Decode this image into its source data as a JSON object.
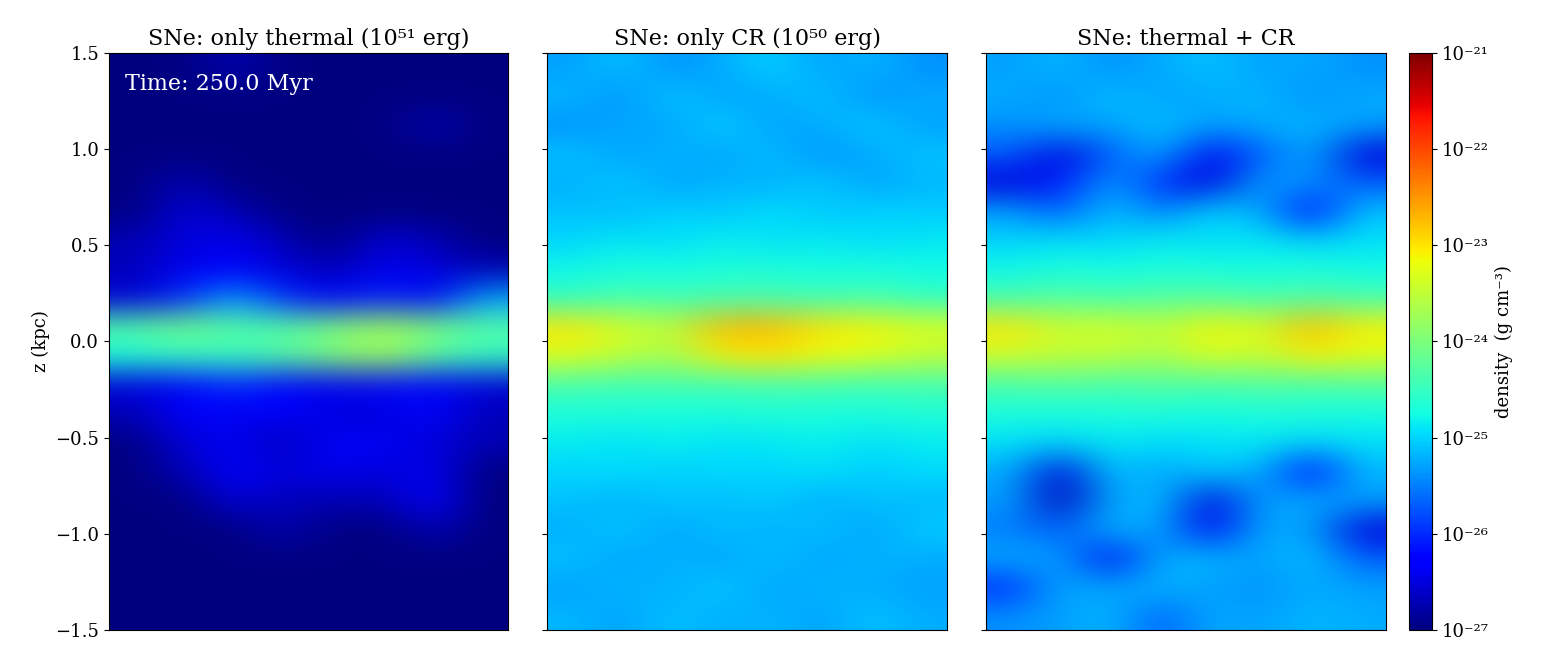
{
  "chart_data": [
    {
      "type": "heatmap",
      "title": "SNe: only thermal (10⁵¹ erg)",
      "annotation": "Time: 250.0 Myr",
      "y_label": "z (kpc)",
      "tick_labels": "y",
      "ylim": [
        -1.5,
        1.5
      ],
      "yticks": [
        {
          "value": -1.5,
          "label": "−1.5"
        },
        {
          "value": -1.0,
          "label": "−1.0"
        },
        {
          "value": -0.5,
          "label": "−0.5"
        },
        {
          "value": 0.0,
          "label": "0.0"
        },
        {
          "value": 0.5,
          "label": "0.5"
        },
        {
          "value": 1.0,
          "label": "1.0"
        },
        {
          "value": 1.5,
          "label": "1.5"
        }
      ],
      "cells": [
        [
          1e-27,
          1e-27,
          2e-27,
          1e-27,
          1e-27,
          1e-27,
          1e-27,
          1e-27
        ],
        [
          1e-27,
          1e-27,
          1e-27,
          1e-27,
          1e-27,
          1e-27,
          1e-27,
          1e-27
        ],
        [
          1e-27,
          1e-27,
          1e-27,
          1e-27,
          1e-27,
          1e-27,
          2e-27,
          1e-27
        ],
        [
          1e-27,
          1e-27,
          1e-27,
          1e-27,
          1e-27,
          1e-27,
          1e-27,
          1e-27
        ],
        [
          1e-27,
          2e-27,
          1e-27,
          1e-27,
          1e-27,
          1e-27,
          1e-27,
          1e-27
        ],
        [
          1e-27,
          3e-27,
          2e-27,
          1e-27,
          1e-27,
          1e-27,
          1e-27,
          1e-27
        ],
        [
          2e-27,
          3e-27,
          4e-27,
          2e-27,
          1e-27,
          3e-27,
          2e-27,
          1e-27
        ],
        [
          2e-27,
          4e-27,
          5e-27,
          3e-27,
          2e-27,
          4e-27,
          3e-27,
          2e-27
        ],
        [
          3e-27,
          1e-26,
          5e-26,
          1e-26,
          5e-27,
          1e-26,
          5e-27,
          5e-26
        ],
        [
          5e-25,
          1e-24,
          5e-25,
          5e-25,
          1e-24,
          2e-24,
          1e-24,
          5e-25
        ],
        [
          2e-25,
          3e-25,
          3e-25,
          5e-25,
          1e-24,
          2e-24,
          5e-25,
          3e-25
        ],
        [
          3e-27,
          5e-27,
          1e-26,
          5e-27,
          4e-27,
          6e-27,
          5e-27,
          3e-27
        ],
        [
          2e-27,
          5e-27,
          4e-27,
          5e-27,
          3e-27,
          3e-27,
          6e-27,
          2e-27
        ],
        [
          1e-27,
          3e-27,
          4e-27,
          2e-27,
          5e-27,
          4e-27,
          3e-27,
          2e-27
        ],
        [
          1e-27,
          2e-27,
          5e-27,
          3e-27,
          4e-27,
          3e-27,
          4e-27,
          1e-27
        ],
        [
          1e-27,
          1e-27,
          3e-27,
          2e-27,
          2e-27,
          2e-27,
          5e-27,
          1e-27
        ],
        [
          1e-27,
          1e-27,
          1e-27,
          2e-27,
          1e-27,
          1e-27,
          2e-27,
          1e-27
        ],
        [
          1e-27,
          1e-27,
          1e-27,
          1e-27,
          1e-27,
          1e-27,
          1e-27,
          1e-27
        ],
        [
          1e-27,
          1e-27,
          1e-27,
          1e-27,
          1e-27,
          1e-27,
          1e-27,
          1e-27
        ],
        [
          1e-27,
          1e-27,
          1e-27,
          1e-27,
          1e-27,
          1e-27,
          1e-27,
          1e-27
        ]
      ]
    },
    {
      "type": "heatmap",
      "title": "SNe: only CR (10⁵⁰ erg)",
      "tick_labels": false,
      "ylim": [
        -1.5,
        1.5
      ],
      "cells": [
        [
          5e-26,
          8e-26,
          4e-26,
          6e-26,
          1e-25,
          5e-26,
          7e-26,
          4e-26
        ],
        [
          7e-26,
          4e-26,
          9e-26,
          5e-26,
          6e-26,
          8e-26,
          4e-26,
          6e-26
        ],
        [
          4e-26,
          6e-26,
          5e-26,
          1e-25,
          5e-26,
          6e-26,
          9e-26,
          5e-26
        ],
        [
          8e-26,
          5e-26,
          7e-26,
          5e-26,
          8e-26,
          4e-26,
          6e-26,
          8e-26
        ],
        [
          6e-26,
          9e-26,
          5e-26,
          7e-26,
          6e-26,
          9e-26,
          5e-26,
          7e-26
        ],
        [
          8e-26,
          7e-26,
          1e-25,
          8e-26,
          1.2e-25,
          8e-26,
          1e-25,
          9e-26
        ],
        [
          1e-25,
          1.3e-25,
          1.1e-25,
          1.5e-25,
          1.2e-25,
          1.4e-25,
          1.1e-25,
          1.3e-25
        ],
        [
          1.6e-25,
          2e-25,
          1.8e-25,
          2e-25,
          2.2e-25,
          1.8e-25,
          2e-25,
          1.7e-25
        ],
        [
          3e-25,
          4e-25,
          3.5e-25,
          4e-25,
          4e-25,
          3.5e-25,
          4e-25,
          3e-25
        ],
        [
          1e-23,
          5e-24,
          3e-24,
          2e-23,
          2e-23,
          1e-23,
          8e-24,
          5e-24
        ],
        [
          5e-24,
          3e-24,
          2e-24,
          8e-24,
          1e-23,
          6e-24,
          5e-24,
          3e-24
        ],
        [
          4e-25,
          3.5e-25,
          4e-25,
          3.5e-25,
          4e-25,
          4e-25,
          3.5e-25,
          4e-25
        ],
        [
          2e-25,
          2.2e-25,
          1.8e-25,
          2e-25,
          2.2e-25,
          1.9e-25,
          2e-25,
          2.1e-25
        ],
        [
          1.4e-25,
          1.2e-25,
          1.5e-25,
          1.2e-25,
          1.3e-25,
          1.5e-25,
          1.2e-25,
          1.4e-25
        ],
        [
          1e-25,
          1.2e-25,
          9e-26,
          1.1e-25,
          1e-25,
          1.2e-25,
          9e-26,
          1.1e-25
        ],
        [
          8e-26,
          6e-26,
          9e-26,
          7e-26,
          9e-26,
          6e-26,
          8e-26,
          7e-26
        ],
        [
          6e-26,
          9e-26,
          5e-26,
          8e-26,
          6e-26,
          8e-26,
          5e-26,
          9e-26
        ],
        [
          8e-26,
          5e-26,
          7e-26,
          5e-26,
          8e-26,
          5e-26,
          7e-26,
          6e-26
        ],
        [
          5e-26,
          7e-26,
          6e-26,
          9e-26,
          5e-26,
          7e-26,
          6e-26,
          5e-26
        ],
        [
          7e-26,
          5e-26,
          8e-26,
          6e-26,
          7e-26,
          5e-26,
          8e-26,
          6e-26
        ]
      ]
    },
    {
      "type": "heatmap",
      "title": "SNe: thermal + CR",
      "tick_labels": false,
      "ylim": [
        -1.5,
        1.5
      ],
      "colorbar_label": "density  (g cm⁻³)",
      "colorbar_range": [
        1e-27,
        1e-21
      ],
      "colorbar_ticks": [
        {
          "value": 1e-27,
          "label": "10⁻²⁷"
        },
        {
          "value": 1e-26,
          "label": "10⁻²⁶"
        },
        {
          "value": 1e-25,
          "label": "10⁻²⁵"
        },
        {
          "value": 1e-24,
          "label": "10⁻²⁴"
        },
        {
          "value": 1e-23,
          "label": "10⁻²³"
        },
        {
          "value": 1e-22,
          "label": "10⁻²²"
        },
        {
          "value": 1e-21,
          "label": "10⁻²¹"
        }
      ],
      "cells": [
        [
          5e-26,
          7e-26,
          4e-26,
          6e-26,
          8e-26,
          5e-26,
          6e-26,
          4e-26
        ],
        [
          6e-26,
          4e-26,
          8e-26,
          5e-26,
          6e-26,
          7e-26,
          4e-26,
          6e-26
        ],
        [
          4e-26,
          6e-26,
          5e-26,
          8e-26,
          5e-26,
          6e-26,
          7e-26,
          5e-26
        ],
        [
          2e-26,
          3e-27,
          2e-26,
          6e-26,
          4e-27,
          2e-26,
          6e-26,
          3e-27
        ],
        [
          3e-27,
          8e-27,
          5e-26,
          1e-26,
          3e-27,
          5e-26,
          4e-26,
          2e-26
        ],
        [
          5e-26,
          2e-26,
          8e-26,
          3e-26,
          1e-25,
          6e-26,
          5e-27,
          8e-26
        ],
        [
          1e-25,
          1.2e-25,
          1e-25,
          1.4e-25,
          1.2e-25,
          1.3e-25,
          1e-25,
          1.2e-25
        ],
        [
          1.6e-25,
          2e-25,
          1.8e-25,
          2e-25,
          2e-25,
          1.8e-25,
          2e-25,
          1.7e-25
        ],
        [
          4e-25,
          5e-25,
          4e-25,
          5e-25,
          5e-25,
          4e-25,
          5e-25,
          4e-25
        ],
        [
          1e-23,
          4e-24,
          5e-24,
          3e-24,
          8e-24,
          5e-24,
          2e-23,
          8e-24
        ],
        [
          4e-24,
          3e-24,
          3e-24,
          2e-24,
          5e-24,
          3e-24,
          8e-24,
          5e-24
        ],
        [
          4e-25,
          5e-25,
          4e-25,
          5e-25,
          4e-25,
          5e-25,
          4e-25,
          5e-25
        ],
        [
          2e-25,
          1.8e-25,
          2e-25,
          2e-25,
          1.8e-25,
          2e-25,
          2e-25,
          1.8e-25
        ],
        [
          1.2e-25,
          1e-25,
          1.3e-25,
          1.1e-25,
          1.2e-25,
          1.3e-25,
          1e-25,
          1.2e-25
        ],
        [
          6e-26,
          3e-27,
          8e-26,
          5e-26,
          9e-26,
          6e-26,
          5e-27,
          7e-26
        ],
        [
          5e-26,
          2e-27,
          5e-26,
          8e-26,
          3e-27,
          5e-26,
          6e-26,
          5e-26
        ],
        [
          3e-26,
          2e-26,
          7e-26,
          5e-26,
          4e-27,
          6e-26,
          5e-26,
          3e-27
        ],
        [
          6e-26,
          5e-26,
          4e-27,
          6e-26,
          7e-26,
          5e-26,
          8e-26,
          2e-26
        ],
        [
          1e-26,
          6e-26,
          5e-26,
          7e-26,
          5e-26,
          4e-26,
          6e-26,
          5e-26
        ],
        [
          4e-26,
          5e-26,
          7e-26,
          2e-26,
          6e-26,
          5e-26,
          7e-26,
          6e-26
        ]
      ]
    }
  ]
}
